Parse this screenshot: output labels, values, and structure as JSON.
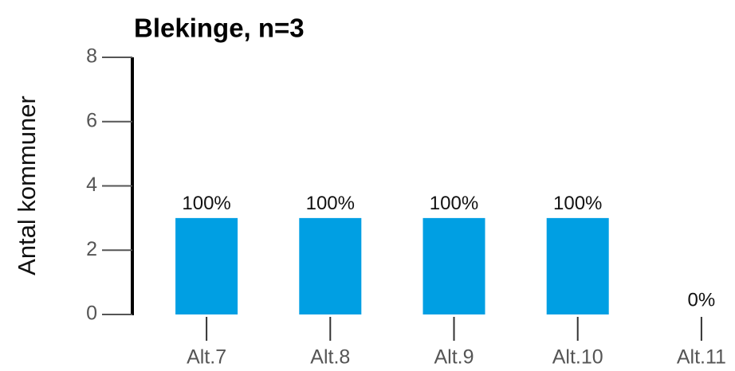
{
  "chart_data": {
    "type": "bar",
    "title": "Blekinge, n=3",
    "y_label": "Antal kommuner",
    "categories": [
      "Alt.7",
      "Alt.8",
      "Alt.9",
      "Alt.10",
      "Alt.11"
    ],
    "values": [
      3,
      3,
      3,
      3,
      0
    ],
    "value_labels": [
      "100%",
      "100%",
      "100%",
      "100%",
      "0%"
    ],
    "color": "#009fe3",
    "ylim": [
      0,
      8
    ],
    "yticks": [
      0,
      2,
      4,
      6,
      8
    ],
    "grid": false
  }
}
